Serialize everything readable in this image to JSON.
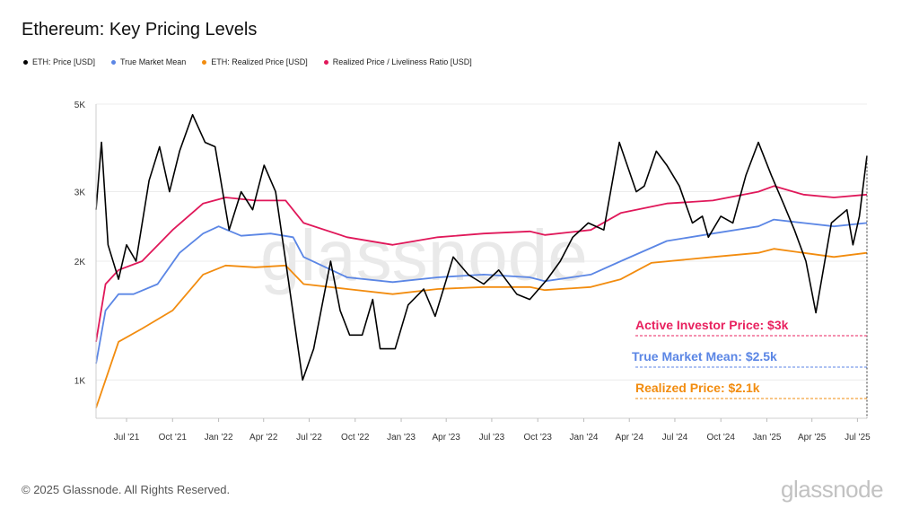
{
  "title": "Ethereum: Key Pricing Levels",
  "legend": [
    {
      "label": "ETH: Price [USD]",
      "color": "#000000"
    },
    {
      "label": "True Market Mean",
      "color": "#5b86e5"
    },
    {
      "label": "ETH: Realized Price [USD]",
      "color": "#f28c0f"
    },
    {
      "label": "Realized Price / Liveliness Ratio [USD]",
      "color": "#e0185a"
    }
  ],
  "footer": {
    "copyright": "© 2025 Glassnode. All Rights Reserved.",
    "logo": "glassnode"
  },
  "watermark": "glassnode",
  "annotations": [
    {
      "text": "Active Investor Price: $3k",
      "color": "#e8215f",
      "value": 3000
    },
    {
      "text": "True Market Mean: $2.5k",
      "color": "#5b86e5",
      "value": 2500
    },
    {
      "text": "Realized Price: $2.1k",
      "color": "#f28c0f",
      "value": 2100
    }
  ],
  "chart_data": {
    "type": "line",
    "scale": "log",
    "ylim": [
      800,
      5000
    ],
    "xlim": [
      "2021-05-01",
      "2025-07-20"
    ],
    "yticks": [
      {
        "label": "1K",
        "value": 1000
      },
      {
        "label": "2K",
        "value": 2000
      },
      {
        "label": "3K",
        "value": 3000
      },
      {
        "label": "5K",
        "value": 5000
      }
    ],
    "xticks": [
      {
        "label": "Jul '21",
        "date": "2021-07-01"
      },
      {
        "label": "Oct '21",
        "date": "2021-10-01"
      },
      {
        "label": "Jan '22",
        "date": "2022-01-01"
      },
      {
        "label": "Apr '22",
        "date": "2022-04-01"
      },
      {
        "label": "Jul '22",
        "date": "2022-07-01"
      },
      {
        "label": "Oct '22",
        "date": "2022-10-01"
      },
      {
        "label": "Jan '23",
        "date": "2023-01-01"
      },
      {
        "label": "Apr '23",
        "date": "2023-04-01"
      },
      {
        "label": "Jul '23",
        "date": "2023-07-01"
      },
      {
        "label": "Oct '23",
        "date": "2023-10-01"
      },
      {
        "label": "Jan '24",
        "date": "2024-01-01"
      },
      {
        "label": "Apr '24",
        "date": "2024-04-01"
      },
      {
        "label": "Jul '24",
        "date": "2024-07-01"
      },
      {
        "label": "Oct '24",
        "date": "2024-10-01"
      },
      {
        "label": "Jan '25",
        "date": "2025-01-01"
      },
      {
        "label": "Apr '25",
        "date": "2025-04-01"
      },
      {
        "label": "Jul '25",
        "date": "2025-07-01"
      }
    ],
    "series": [
      {
        "name": "ETH: Price [USD]",
        "color": "#000000",
        "x": [
          "2021-05-01",
          "2021-05-12",
          "2021-05-25",
          "2021-06-15",
          "2021-07-01",
          "2021-07-20",
          "2021-08-15",
          "2021-09-05",
          "2021-09-25",
          "2021-10-15",
          "2021-11-10",
          "2021-12-05",
          "2021-12-25",
          "2022-01-22",
          "2022-02-15",
          "2022-03-10",
          "2022-04-02",
          "2022-04-25",
          "2022-05-15",
          "2022-06-18",
          "2022-07-10",
          "2022-08-13",
          "2022-09-01",
          "2022-09-20",
          "2022-10-15",
          "2022-11-05",
          "2022-11-20",
          "2022-12-20",
          "2023-01-15",
          "2023-02-15",
          "2023-03-10",
          "2023-04-15",
          "2023-05-15",
          "2023-06-15",
          "2023-07-15",
          "2023-08-20",
          "2023-09-15",
          "2023-10-20",
          "2023-11-15",
          "2023-12-10",
          "2024-01-10",
          "2024-02-10",
          "2024-03-12",
          "2024-04-15",
          "2024-05-01",
          "2024-05-25",
          "2024-06-15",
          "2024-07-10",
          "2024-08-05",
          "2024-08-25",
          "2024-09-06",
          "2024-10-01",
          "2024-10-25",
          "2024-11-20",
          "2024-12-15",
          "2025-01-10",
          "2025-02-03",
          "2025-02-25",
          "2025-03-20",
          "2025-04-09",
          "2025-05-10",
          "2025-06-10",
          "2025-06-22",
          "2025-07-05",
          "2025-07-20"
        ],
        "values": [
          2700,
          4000,
          2200,
          1800,
          2200,
          2000,
          3200,
          3900,
          3000,
          3800,
          4700,
          4000,
          3900,
          2400,
          3000,
          2700,
          3500,
          3000,
          2000,
          1000,
          1200,
          2000,
          1500,
          1300,
          1300,
          1600,
          1200,
          1200,
          1550,
          1700,
          1450,
          2050,
          1850,
          1750,
          1900,
          1650,
          1600,
          1800,
          2000,
          2300,
          2500,
          2400,
          4000,
          3000,
          3100,
          3800,
          3500,
          3100,
          2500,
          2600,
          2300,
          2600,
          2500,
          3300,
          4000,
          3300,
          2800,
          2400,
          2000,
          1480,
          2500,
          2700,
          2200,
          2600,
          3700
        ]
      },
      {
        "name": "True Market Mean",
        "color": "#5b86e5",
        "x": [
          "2021-05-01",
          "2021-05-20",
          "2021-06-15",
          "2021-07-15",
          "2021-09-01",
          "2021-10-15",
          "2021-12-01",
          "2022-01-01",
          "2022-02-15",
          "2022-04-15",
          "2022-05-30",
          "2022-06-20",
          "2022-09-15",
          "2022-12-15",
          "2023-03-15",
          "2023-06-15",
          "2023-09-15",
          "2023-10-15",
          "2024-01-15",
          "2024-03-15",
          "2024-06-15",
          "2024-09-15",
          "2024-12-15",
          "2025-01-15",
          "2025-03-15",
          "2025-05-15",
          "2025-07-20"
        ],
        "values": [
          1100,
          1500,
          1650,
          1650,
          1750,
          2100,
          2350,
          2450,
          2320,
          2350,
          2300,
          2050,
          1820,
          1770,
          1820,
          1850,
          1820,
          1780,
          1850,
          2000,
          2250,
          2350,
          2450,
          2550,
          2500,
          2450,
          2500
        ]
      },
      {
        "name": "ETH: Realized Price [USD]",
        "color": "#f28c0f",
        "x": [
          "2021-05-01",
          "2021-05-20",
          "2021-06-15",
          "2021-08-01",
          "2021-10-01",
          "2021-12-01",
          "2022-01-15",
          "2022-03-15",
          "2022-05-15",
          "2022-06-20",
          "2022-09-15",
          "2022-12-15",
          "2023-03-15",
          "2023-06-15",
          "2023-09-15",
          "2023-10-15",
          "2024-01-15",
          "2024-03-15",
          "2024-05-15",
          "2024-09-15",
          "2024-12-15",
          "2025-01-15",
          "2025-03-15",
          "2025-05-15",
          "2025-07-20"
        ],
        "values": [
          850,
          1000,
          1250,
          1350,
          1500,
          1850,
          1950,
          1930,
          1950,
          1750,
          1700,
          1650,
          1700,
          1720,
          1720,
          1690,
          1720,
          1800,
          1980,
          2050,
          2100,
          2150,
          2100,
          2050,
          2100
        ]
      },
      {
        "name": "Realized Price / Liveliness Ratio [USD]",
        "color": "#e0185a",
        "x": [
          "2021-05-01",
          "2021-05-20",
          "2021-06-15",
          "2021-08-01",
          "2021-10-01",
          "2021-12-01",
          "2022-01-15",
          "2022-03-15",
          "2022-05-15",
          "2022-06-20",
          "2022-09-15",
          "2022-12-15",
          "2023-03-15",
          "2023-06-15",
          "2023-09-15",
          "2023-10-15",
          "2024-01-15",
          "2024-03-15",
          "2024-06-15",
          "2024-09-15",
          "2024-12-15",
          "2025-01-15",
          "2025-03-15",
          "2025-05-15",
          "2025-07-20"
        ],
        "values": [
          1250,
          1750,
          1900,
          2000,
          2400,
          2800,
          2900,
          2850,
          2850,
          2500,
          2300,
          2200,
          2300,
          2350,
          2380,
          2330,
          2400,
          2650,
          2800,
          2850,
          3000,
          3100,
          2950,
          2900,
          2950
        ]
      }
    ]
  }
}
